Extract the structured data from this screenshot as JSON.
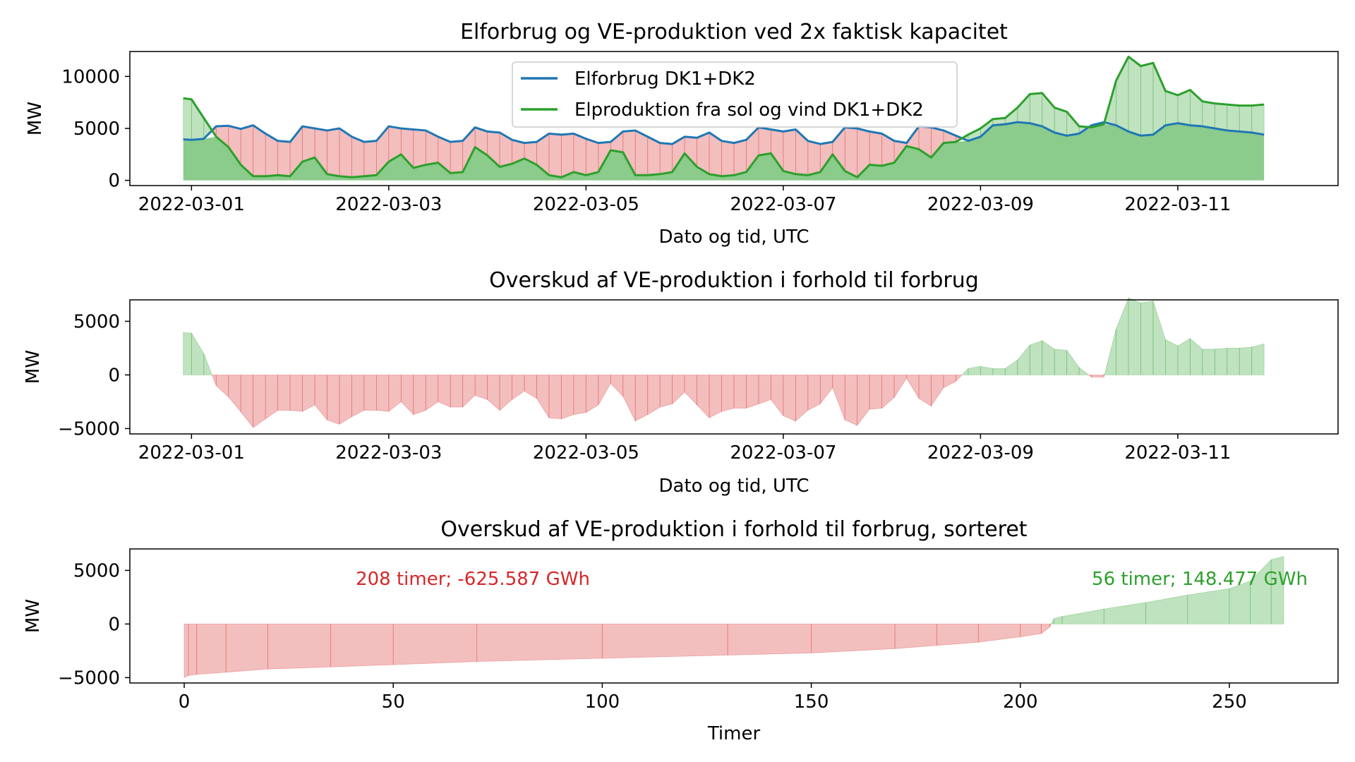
{
  "chart_data": [
    {
      "type": "line",
      "title": "Elforbrug og VE-produktion ved 2x faktisk kapacitet",
      "xlabel": "Dato og tid, UTC",
      "ylabel": "MW",
      "xlim": [
        "2022-02-28T09:00",
        "2022-03-12T15:00"
      ],
      "ylim": [
        -500,
        12400
      ],
      "xticks": [
        "2022-03-01",
        "2022-03-03",
        "2022-03-05",
        "2022-03-07",
        "2022-03-09",
        "2022-03-11"
      ],
      "yticks": [
        0,
        5000,
        10000
      ],
      "legend_position": "top-center",
      "grid": false,
      "fill_between_series": {
        "positive_color": "#2ca02c",
        "negative_color": "#d62728"
      },
      "x": [
        "2022-02-28T22:00",
        "2022-03-01T00:00",
        "2022-03-01T03:00",
        "2022-03-01T06:00",
        "2022-03-01T09:00",
        "2022-03-01T12:00",
        "2022-03-01T15:00",
        "2022-03-01T18:00",
        "2022-03-01T21:00",
        "2022-03-02T00:00",
        "2022-03-02T03:00",
        "2022-03-02T06:00",
        "2022-03-02T09:00",
        "2022-03-02T12:00",
        "2022-03-02T15:00",
        "2022-03-02T18:00",
        "2022-03-02T21:00",
        "2022-03-03T00:00",
        "2022-03-03T03:00",
        "2022-03-03T06:00",
        "2022-03-03T09:00",
        "2022-03-03T12:00",
        "2022-03-03T15:00",
        "2022-03-03T18:00",
        "2022-03-03T21:00",
        "2022-03-04T00:00",
        "2022-03-04T03:00",
        "2022-03-04T06:00",
        "2022-03-04T09:00",
        "2022-03-04T12:00",
        "2022-03-04T15:00",
        "2022-03-04T18:00",
        "2022-03-04T21:00",
        "2022-03-05T00:00",
        "2022-03-05T03:00",
        "2022-03-05T06:00",
        "2022-03-05T09:00",
        "2022-03-05T12:00",
        "2022-03-05T15:00",
        "2022-03-05T18:00",
        "2022-03-05T21:00",
        "2022-03-06T00:00",
        "2022-03-06T03:00",
        "2022-03-06T06:00",
        "2022-03-06T09:00",
        "2022-03-06T12:00",
        "2022-03-06T15:00",
        "2022-03-06T18:00",
        "2022-03-06T21:00",
        "2022-03-07T00:00",
        "2022-03-07T03:00",
        "2022-03-07T06:00",
        "2022-03-07T09:00",
        "2022-03-07T12:00",
        "2022-03-07T15:00",
        "2022-03-07T18:00",
        "2022-03-07T21:00",
        "2022-03-08T00:00",
        "2022-03-08T03:00",
        "2022-03-08T06:00",
        "2022-03-08T09:00",
        "2022-03-08T12:00",
        "2022-03-08T15:00",
        "2022-03-08T18:00",
        "2022-03-08T21:00",
        "2022-03-09T00:00",
        "2022-03-09T03:00",
        "2022-03-09T06:00",
        "2022-03-09T09:00",
        "2022-03-09T12:00",
        "2022-03-09T15:00",
        "2022-03-09T18:00",
        "2022-03-09T21:00",
        "2022-03-10T00:00",
        "2022-03-10T03:00",
        "2022-03-10T06:00",
        "2022-03-10T09:00",
        "2022-03-10T12:00",
        "2022-03-10T15:00",
        "2022-03-10T18:00",
        "2022-03-10T21:00",
        "2022-03-11T00:00",
        "2022-03-11T03:00",
        "2022-03-11T06:00",
        "2022-03-11T09:00",
        "2022-03-11T12:00",
        "2022-03-11T15:00",
        "2022-03-11T18:00",
        "2022-03-11T21:00"
      ],
      "series": [
        {
          "name": "Elforbrug DK1+DK2",
          "color": "#1f77b4",
          "role": "line",
          "values": [
            3950,
            3900,
            4000,
            5200,
            5250,
            4950,
            5300,
            4500,
            3800,
            3700,
            5200,
            5000,
            4800,
            5000,
            4200,
            3700,
            3800,
            5200,
            5000,
            4900,
            4800,
            4200,
            3700,
            3800,
            5100,
            4700,
            4600,
            3900,
            3600,
            3700,
            4500,
            4400,
            4500,
            4000,
            3600,
            3700,
            4700,
            4800,
            4200,
            3600,
            3500,
            4200,
            4100,
            4600,
            3800,
            3600,
            3900,
            5100,
            4900,
            4700,
            4900,
            3800,
            3500,
            3700,
            5100,
            5000,
            4700,
            4500,
            3800,
            3600,
            5200,
            5100,
            4800,
            4300,
            3800,
            4200,
            5300,
            5400,
            5600,
            5500,
            5200,
            4600,
            4300,
            4500,
            5300,
            5600,
            5300,
            4700,
            4300,
            4400,
            5300,
            5500,
            5300,
            5200,
            5000,
            4800,
            4700,
            4600,
            4400
          ]
        },
        {
          "name": "Elproduktion fra sol og vind DK1+DK2",
          "color": "#2ca02c",
          "role": "line",
          "values": [
            7900,
            7800,
            6000,
            4200,
            3200,
            1500,
            400,
            400,
            500,
            400,
            1800,
            2200,
            600,
            400,
            300,
            400,
            500,
            1800,
            2500,
            1200,
            1500,
            1700,
            700,
            800,
            3200,
            2400,
            1300,
            1600,
            2100,
            1500,
            500,
            300,
            800,
            500,
            800,
            2900,
            2700,
            500,
            500,
            600,
            800,
            2600,
            1300,
            600,
            400,
            500,
            800,
            2400,
            2600,
            900,
            600,
            500,
            800,
            2500,
            900,
            300,
            1500,
            1400,
            1700,
            3300,
            3000,
            2200,
            3600,
            3700,
            4400,
            5000,
            5900,
            6000,
            7000,
            8300,
            8400,
            7000,
            6600,
            5200,
            5100,
            5400,
            9600,
            11900,
            11000,
            11300,
            8600,
            8200,
            8700,
            7600,
            7400,
            7300,
            7200,
            7200,
            7300
          ]
        }
      ]
    },
    {
      "type": "area",
      "title": "Overskud af VE-produktion i forhold til forbrug",
      "xlabel": "Dato og tid, UTC",
      "ylabel": "MW",
      "xlim": [
        "2022-02-28T09:00",
        "2022-03-12T15:00"
      ],
      "ylim": [
        -5500,
        7000
      ],
      "xticks": [
        "2022-03-01",
        "2022-03-03",
        "2022-03-05",
        "2022-03-07",
        "2022-03-09",
        "2022-03-11"
      ],
      "yticks": [
        -5000,
        0,
        5000
      ],
      "grid": false,
      "positive_color": "#2ca02c",
      "negative_color": "#d62728",
      "x": [
        "2022-02-28T22:00",
        "2022-03-01T00:00",
        "2022-03-01T03:00",
        "2022-03-01T06:00",
        "2022-03-01T09:00",
        "2022-03-01T12:00",
        "2022-03-01T15:00",
        "2022-03-01T18:00",
        "2022-03-01T21:00",
        "2022-03-02T00:00",
        "2022-03-02T03:00",
        "2022-03-02T06:00",
        "2022-03-02T09:00",
        "2022-03-02T12:00",
        "2022-03-02T15:00",
        "2022-03-02T18:00",
        "2022-03-02T21:00",
        "2022-03-03T00:00",
        "2022-03-03T03:00",
        "2022-03-03T06:00",
        "2022-03-03T09:00",
        "2022-03-03T12:00",
        "2022-03-03T15:00",
        "2022-03-03T18:00",
        "2022-03-03T21:00",
        "2022-03-04T00:00",
        "2022-03-04T03:00",
        "2022-03-04T06:00",
        "2022-03-04T09:00",
        "2022-03-04T12:00",
        "2022-03-04T15:00",
        "2022-03-04T18:00",
        "2022-03-04T21:00",
        "2022-03-05T00:00",
        "2022-03-05T03:00",
        "2022-03-05T06:00",
        "2022-03-05T09:00",
        "2022-03-05T12:00",
        "2022-03-05T15:00",
        "2022-03-05T18:00",
        "2022-03-05T21:00",
        "2022-03-06T00:00",
        "2022-03-06T03:00",
        "2022-03-06T06:00",
        "2022-03-06T09:00",
        "2022-03-06T12:00",
        "2022-03-06T15:00",
        "2022-03-06T18:00",
        "2022-03-06T21:00",
        "2022-03-07T00:00",
        "2022-03-07T03:00",
        "2022-03-07T06:00",
        "2022-03-07T09:00",
        "2022-03-07T12:00",
        "2022-03-07T15:00",
        "2022-03-07T18:00",
        "2022-03-07T21:00",
        "2022-03-08T00:00",
        "2022-03-08T03:00",
        "2022-03-08T06:00",
        "2022-03-08T09:00",
        "2022-03-08T12:00",
        "2022-03-08T15:00",
        "2022-03-08T18:00",
        "2022-03-08T21:00",
        "2022-03-09T00:00",
        "2022-03-09T03:00",
        "2022-03-09T06:00",
        "2022-03-09T09:00",
        "2022-03-09T12:00",
        "2022-03-09T15:00",
        "2022-03-09T18:00",
        "2022-03-09T21:00",
        "2022-03-10T00:00",
        "2022-03-10T03:00",
        "2022-03-10T06:00",
        "2022-03-10T09:00",
        "2022-03-10T12:00",
        "2022-03-10T15:00",
        "2022-03-10T18:00",
        "2022-03-10T21:00",
        "2022-03-11T00:00",
        "2022-03-11T03:00",
        "2022-03-11T06:00",
        "2022-03-11T09:00",
        "2022-03-11T12:00",
        "2022-03-11T15:00",
        "2022-03-11T18:00",
        "2022-03-11T21:00"
      ],
      "values": [
        3950,
        3900,
        2000,
        -1000,
        -2050,
        -3450,
        -4900,
        -4100,
        -3300,
        -3300,
        -3400,
        -2800,
        -4200,
        -4600,
        -3900,
        -3300,
        -3300,
        -3400,
        -2500,
        -3700,
        -3300,
        -2500,
        -3000,
        -3000,
        -1900,
        -2300,
        -3300,
        -2300,
        -1500,
        -2200,
        -4000,
        -4100,
        -3700,
        -3500,
        -2800,
        -800,
        -2000,
        -4300,
        -3700,
        -3000,
        -2700,
        -1600,
        -2800,
        -4000,
        -3400,
        -3100,
        -3100,
        -2700,
        -2300,
        -3800,
        -4300,
        -3300,
        -2700,
        -1200,
        -4200,
        -4700,
        -3200,
        -3100,
        -2100,
        -300,
        -2200,
        -2900,
        -1200,
        -600,
        600,
        800,
        600,
        600,
        1400,
        2800,
        3200,
        2400,
        2300,
        700,
        -200,
        -200,
        4300,
        7200,
        6700,
        6900,
        3300,
        2700,
        3400,
        2400,
        2400,
        2500,
        2500,
        2600,
        2900
      ]
    },
    {
      "type": "area",
      "title": "Overskud af VE-produktion i forhold til forbrug, sorteret",
      "xlabel": "Timer",
      "ylabel": "MW",
      "xlim": [
        -13,
        276
      ],
      "ylim": [
        -5500,
        7000
      ],
      "xticks": [
        0,
        50,
        100,
        150,
        200,
        250
      ],
      "yticks": [
        -5000,
        0,
        5000
      ],
      "grid": false,
      "positive_color": "#2ca02c",
      "negative_color": "#d62728",
      "x": [
        0,
        1,
        3,
        10,
        20,
        35,
        50,
        70,
        100,
        130,
        150,
        170,
        180,
        190,
        200,
        205,
        207,
        208,
        210,
        220,
        230,
        240,
        250,
        255,
        260,
        263
      ],
      "values": [
        -5000,
        -4800,
        -4700,
        -4500,
        -4200,
        -4000,
        -3800,
        -3500,
        -3200,
        -2900,
        -2700,
        -2300,
        -2000,
        -1700,
        -1200,
        -900,
        -300,
        500,
        700,
        1400,
        2000,
        2700,
        3300,
        4000,
        6000,
        6300
      ],
      "annotations": [
        {
          "text": "208 timer; -625.587 GWh",
          "color": "#d62728"
        },
        {
          "text": "56 timer; 148.477 GWh",
          "color": "#2ca02c"
        }
      ]
    }
  ]
}
